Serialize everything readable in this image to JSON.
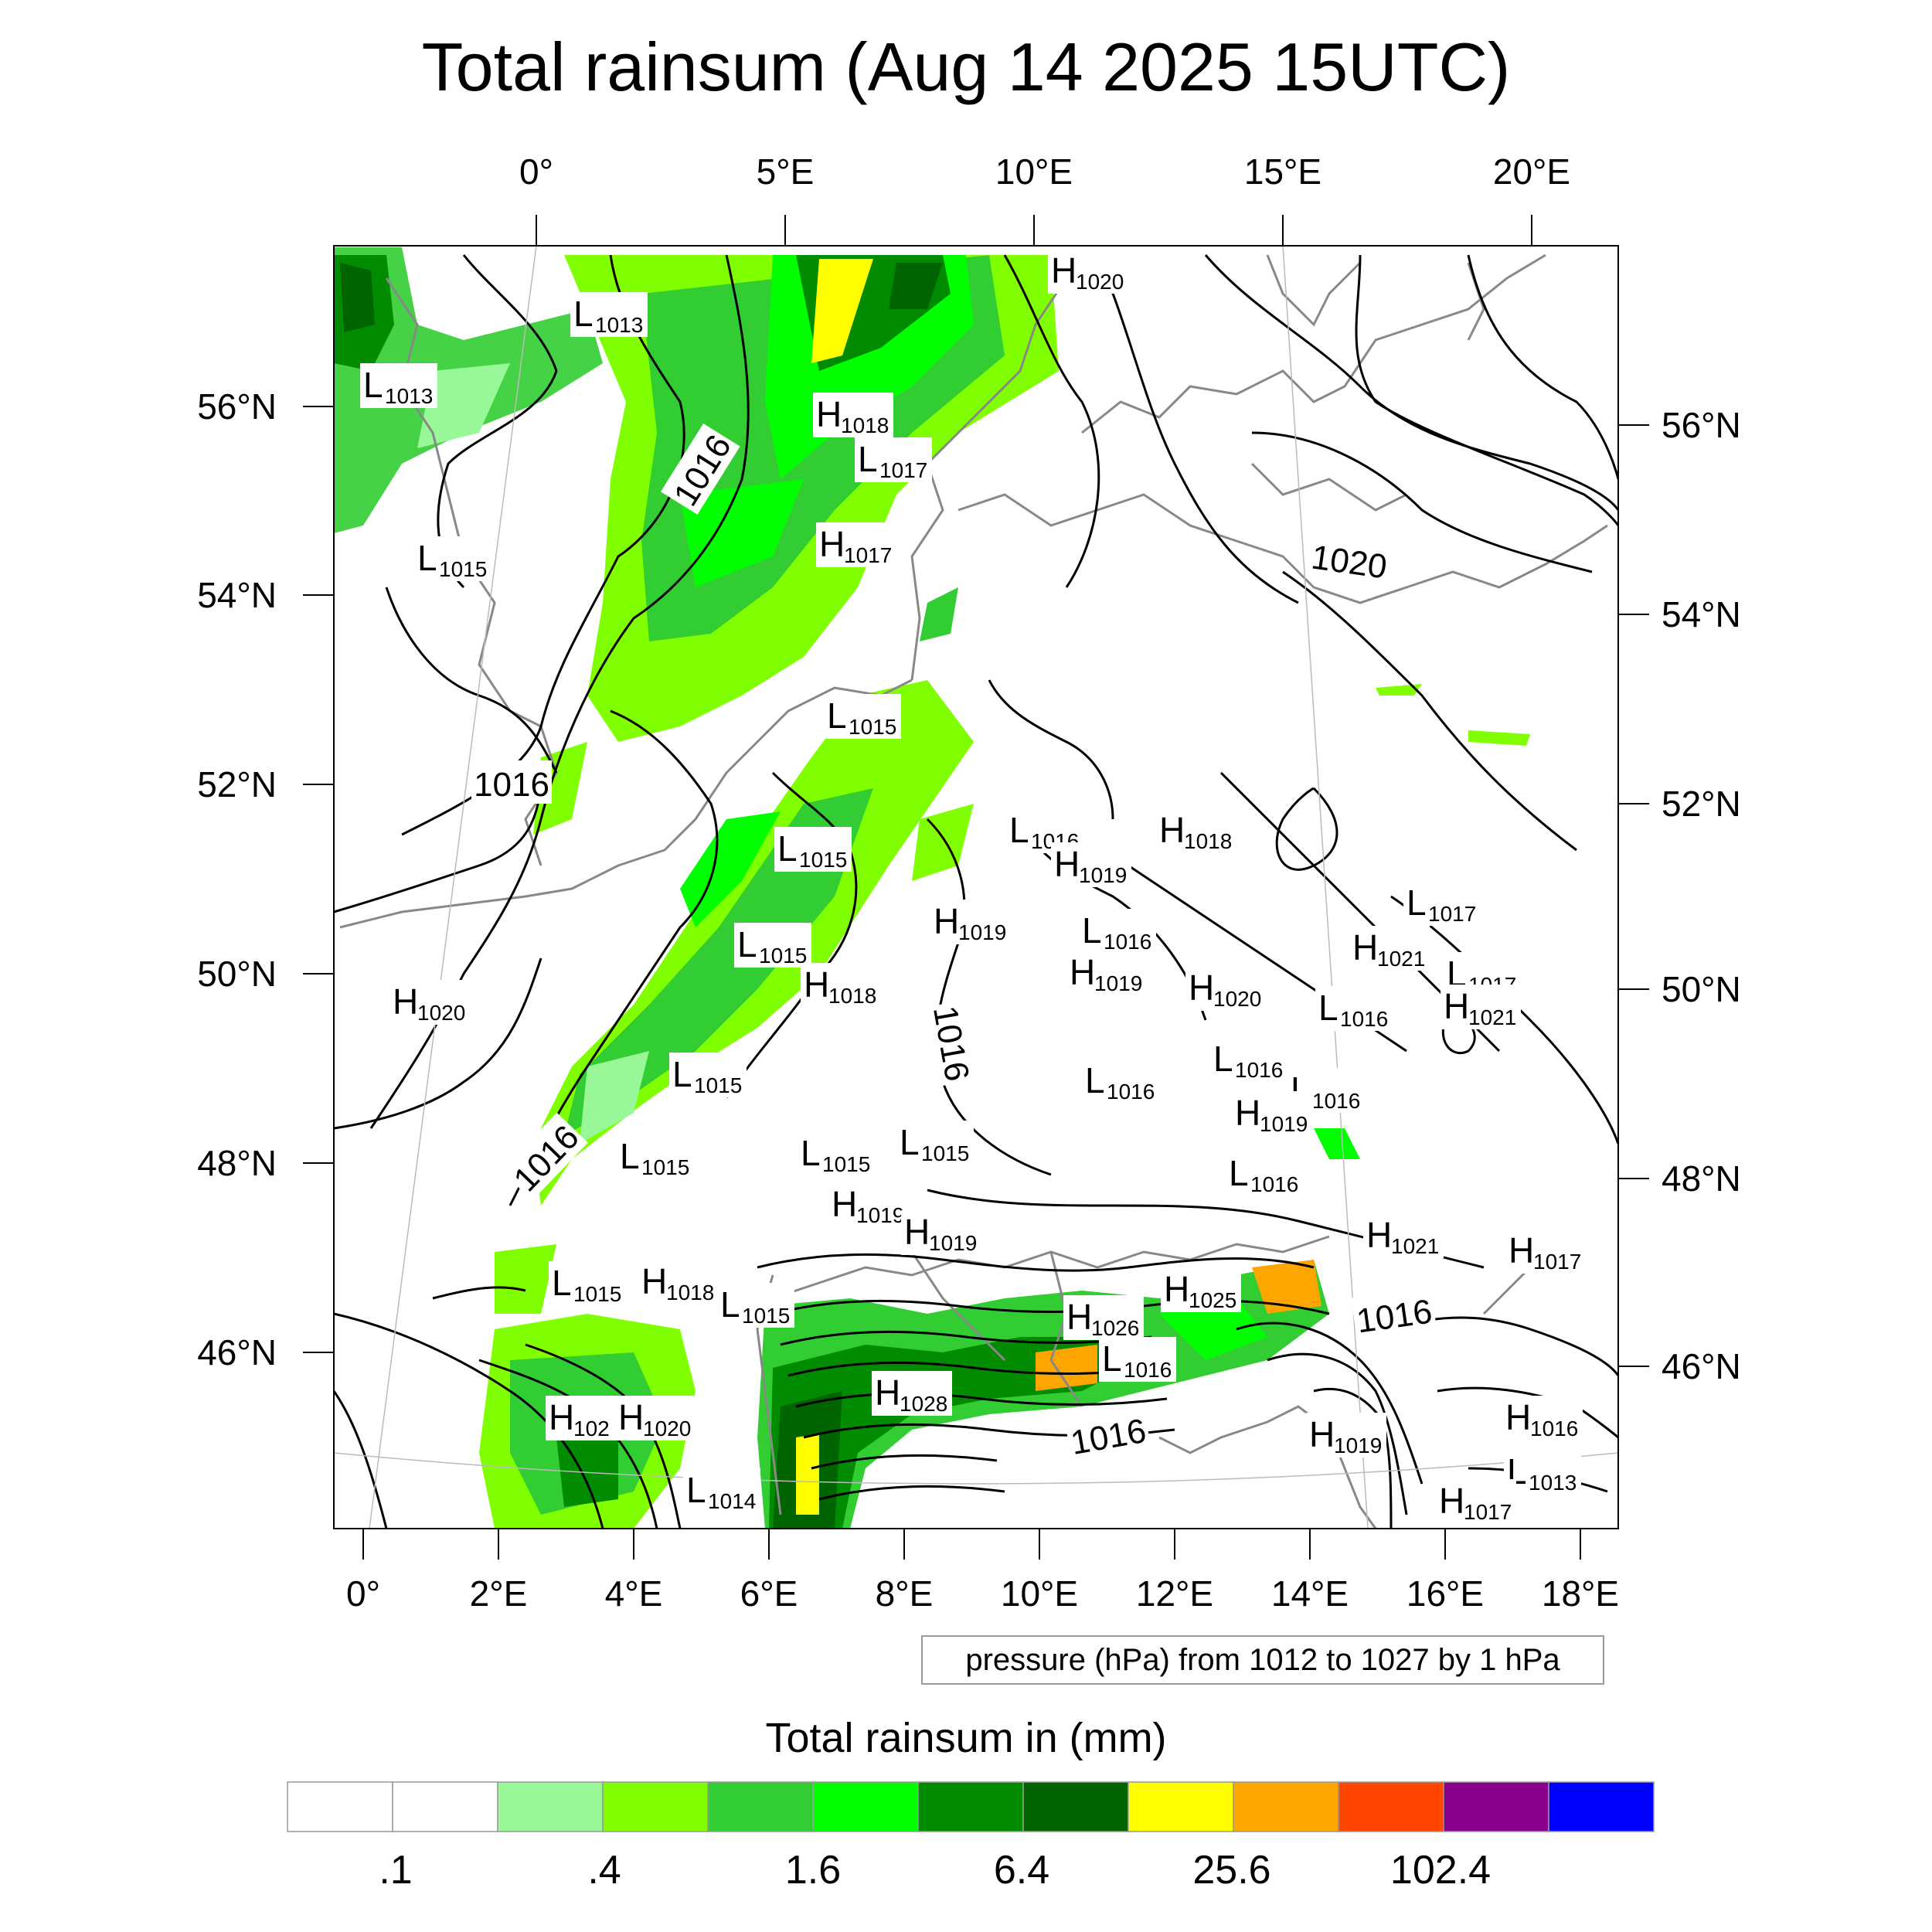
{
  "title": "Total rainsum (Aug 14 2025 15UTC)",
  "top_axis_labels": [
    "0°",
    "5°E",
    "10°E",
    "15°E",
    "20°E"
  ],
  "bottom_axis_labels": [
    "0°",
    "2°E",
    "4°E",
    "6°E",
    "8°E",
    "10°E",
    "12°E",
    "14°E",
    "16°E",
    "18°E"
  ],
  "left_axis_labels": [
    "56°N",
    "54°N",
    "52°N",
    "50°N",
    "48°N",
    "46°N"
  ],
  "right_axis_labels": [
    "56°N",
    "54°N",
    "52°N",
    "50°N",
    "48°N",
    "46°N"
  ],
  "pressure_note": "pressure (hPa) from 1012 to 1027 by 1 hPa",
  "colorbar": {
    "title": "Total rainsum in (mm)",
    "colors": [
      "#ffffff",
      "#ffffff",
      "#98f898",
      "#80ff00",
      "#32cd32",
      "#00ff00",
      "#008b00",
      "#006400",
      "#ffff00",
      "#ffa500",
      "#ff4500",
      "#8b008b",
      "#0000ff"
    ],
    "labels": [
      ".1",
      ".4",
      "1.6",
      "6.4",
      "25.6",
      "102.4"
    ]
  },
  "isobar_labels": [
    "1016",
    "1016",
    "1016",
    "1016",
    "1016",
    "1016",
    "1020"
  ],
  "pressure_centers": [
    {
      "letter": "L",
      "value": "1013"
    },
    {
      "letter": "L",
      "value": "1013"
    },
    {
      "letter": "H",
      "value": "1020"
    },
    {
      "letter": "H",
      "value": "1018"
    },
    {
      "letter": "L",
      "value": "1017"
    },
    {
      "letter": "H",
      "value": "1017"
    },
    {
      "letter": "L",
      "value": "1015"
    },
    {
      "letter": "L",
      "value": "1015"
    },
    {
      "letter": "L",
      "value": "1016"
    },
    {
      "letter": "H",
      "value": "1018"
    },
    {
      "letter": "H",
      "value": "1019"
    },
    {
      "letter": "L",
      "value": "1015"
    },
    {
      "letter": "H",
      "value": "1019"
    },
    {
      "letter": "L",
      "value": "1016"
    },
    {
      "letter": "L",
      "value": "1017"
    },
    {
      "letter": "L",
      "value": "1015"
    },
    {
      "letter": "H",
      "value": "1021"
    },
    {
      "letter": "L",
      "value": "1017"
    },
    {
      "letter": "H",
      "value": "1019"
    },
    {
      "letter": "H",
      "value": "1020"
    },
    {
      "letter": "H",
      "value": "1018"
    },
    {
      "letter": "H",
      "value": "1021"
    },
    {
      "letter": "H",
      "value": "1020"
    },
    {
      "letter": "L",
      "value": "1016"
    },
    {
      "letter": "L",
      "value": "1016"
    },
    {
      "letter": "L",
      "value": "1015"
    },
    {
      "letter": "L",
      "value": "1016"
    },
    {
      "letter": "L",
      "value": "1016"
    },
    {
      "letter": "H",
      "value": "1019"
    },
    {
      "letter": "L",
      "value": "1015"
    },
    {
      "letter": "L",
      "value": "1015"
    },
    {
      "letter": "L",
      "value": "1015"
    },
    {
      "letter": "L",
      "value": "1016"
    },
    {
      "letter": "H",
      "value": "1019"
    },
    {
      "letter": "H",
      "value": "1019"
    },
    {
      "letter": "H",
      "value": "1021"
    },
    {
      "letter": "L",
      "value": "1015"
    },
    {
      "letter": "H",
      "value": "1018"
    },
    {
      "letter": "L",
      "value": "1015"
    },
    {
      "letter": "H",
      "value": "1017"
    },
    {
      "letter": "H",
      "value": "1025"
    },
    {
      "letter": "H",
      "value": "1026"
    },
    {
      "letter": "L",
      "value": "1016"
    },
    {
      "letter": "H",
      "value": "1028"
    },
    {
      "letter": "H",
      "value": "102"
    },
    {
      "letter": "H",
      "value": "1020"
    },
    {
      "letter": "L",
      "value": "1014"
    },
    {
      "letter": "H",
      "value": "1019"
    },
    {
      "letter": "H",
      "value": "1016"
    },
    {
      "letter": "L",
      "value": "1013"
    },
    {
      "letter": "H",
      "value": "1017"
    }
  ]
}
